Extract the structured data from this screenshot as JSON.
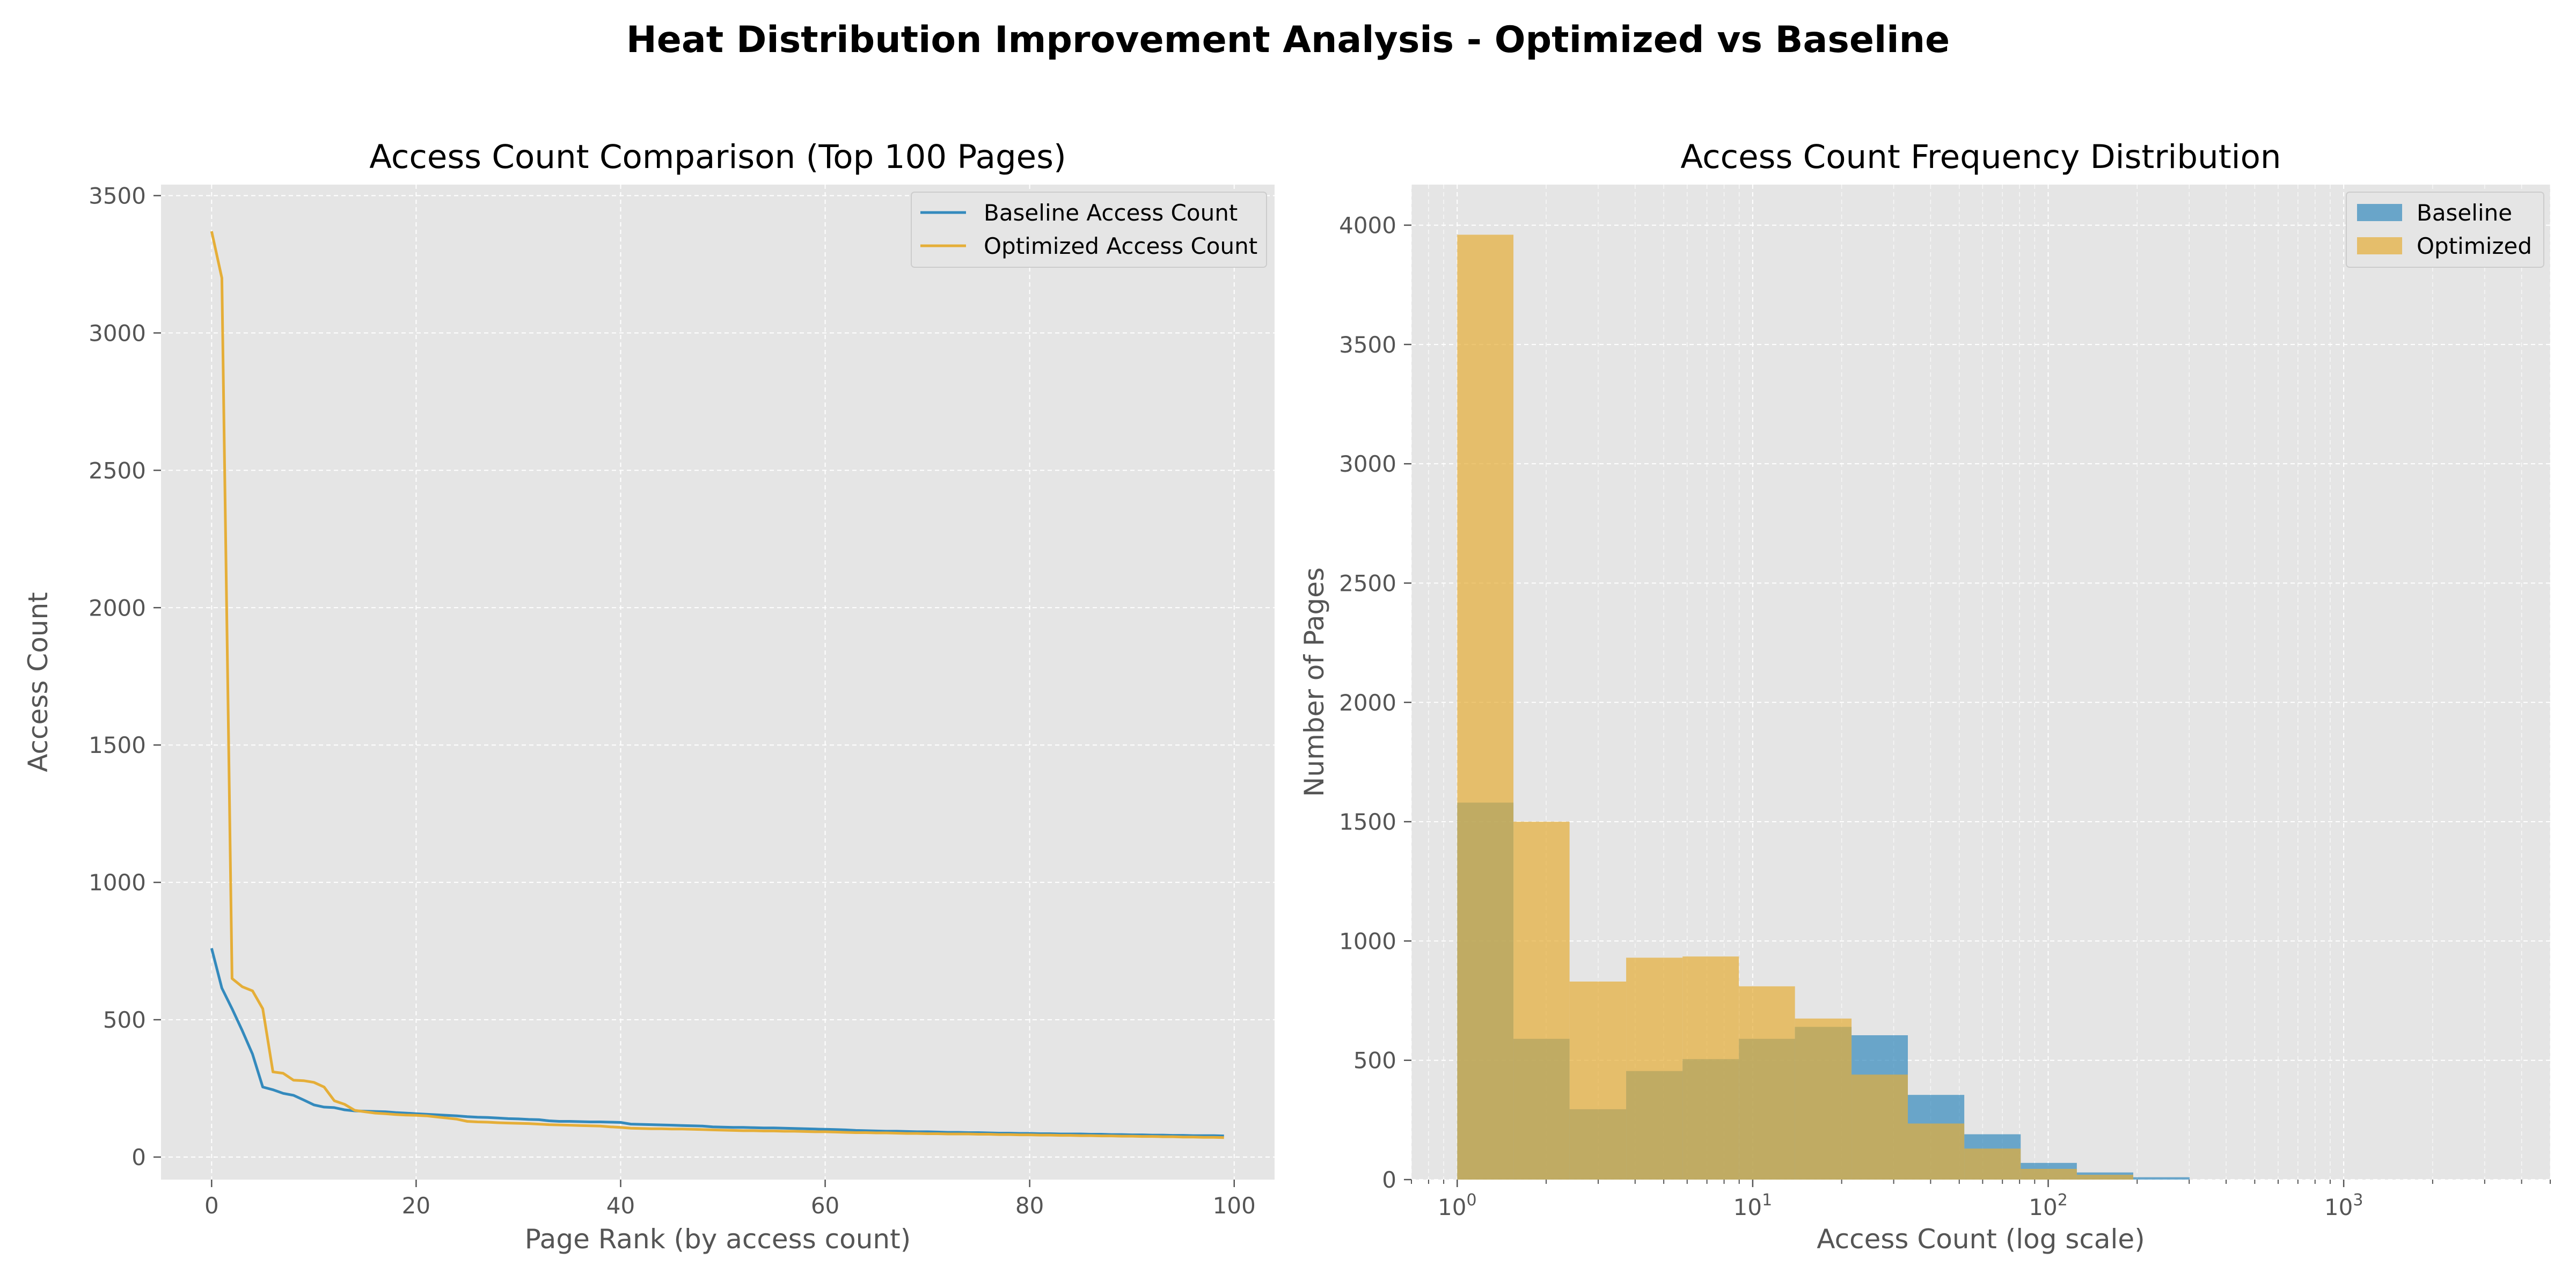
{
  "figure": {
    "title": "Heat Distribution Improvement Analysis - Optimized vs Baseline"
  },
  "colors": {
    "baseline": "#348abd",
    "optimized": "#e5ae38",
    "panel_bg": "#e5e5e5",
    "grid": "#ffffff"
  },
  "chart_data": [
    {
      "type": "line",
      "title": "Access Count Comparison (Top 100 Pages)",
      "xlabel": "Page Rank (by access count)",
      "ylabel": "Access Count",
      "xlim": [
        -4.95,
        103.95
      ],
      "ylim": [
        -82,
        3540
      ],
      "xticks": [
        0,
        20,
        40,
        60,
        80,
        100
      ],
      "yticks": [
        0,
        500,
        1000,
        1500,
        2000,
        2500,
        3000,
        3500
      ],
      "grid": true,
      "legend_position": "upper right",
      "series": [
        {
          "name": "Baseline Access Count",
          "color": "#348abd",
          "x": [
            0,
            1,
            2,
            3,
            4,
            5,
            6,
            7,
            8,
            9,
            10,
            11,
            12,
            13,
            14,
            15,
            16,
            17,
            18,
            19,
            20,
            21,
            22,
            23,
            24,
            25,
            26,
            27,
            28,
            29,
            30,
            31,
            32,
            33,
            34,
            35,
            36,
            37,
            38,
            39,
            40,
            41,
            42,
            43,
            44,
            45,
            46,
            47,
            48,
            49,
            50,
            51,
            52,
            53,
            54,
            55,
            56,
            57,
            58,
            59,
            60,
            61,
            62,
            63,
            64,
            65,
            66,
            67,
            68,
            69,
            70,
            71,
            72,
            73,
            74,
            75,
            76,
            77,
            78,
            79,
            80,
            81,
            82,
            83,
            84,
            85,
            86,
            87,
            88,
            89,
            90,
            91,
            92,
            93,
            94,
            95,
            96,
            97,
            98,
            99
          ],
          "y": [
            760,
            615,
            540,
            460,
            375,
            255,
            245,
            232,
            225,
            208,
            190,
            182,
            180,
            172,
            168,
            167,
            166,
            165,
            162,
            160,
            158,
            156,
            154,
            152,
            150,
            147,
            145,
            144,
            142,
            140,
            139,
            137,
            136,
            132,
            130,
            130,
            129,
            128,
            128,
            127,
            126,
            120,
            119,
            118,
            117,
            116,
            115,
            114,
            113,
            110,
            109,
            108,
            108,
            107,
            106,
            106,
            105,
            104,
            103,
            102,
            101,
            100,
            99,
            97,
            96,
            95,
            94,
            94,
            93,
            92,
            92,
            91,
            90,
            90,
            89,
            89,
            88,
            87,
            87,
            86,
            86,
            85,
            85,
            84,
            84,
            84,
            83,
            83,
            82,
            82,
            81,
            81,
            80,
            80,
            79,
            79,
            78,
            78,
            78,
            77
          ]
        },
        {
          "name": "Optimized Access Count",
          "color": "#e5ae38",
          "x": [
            0,
            1,
            2,
            3,
            4,
            5,
            6,
            7,
            8,
            9,
            10,
            11,
            12,
            13,
            14,
            15,
            16,
            17,
            18,
            19,
            20,
            21,
            22,
            23,
            24,
            25,
            26,
            27,
            28,
            29,
            30,
            31,
            32,
            33,
            34,
            35,
            36,
            37,
            38,
            39,
            40,
            41,
            42,
            43,
            44,
            45,
            46,
            47,
            48,
            49,
            50,
            51,
            52,
            53,
            54,
            55,
            56,
            57,
            58,
            59,
            60,
            61,
            62,
            63,
            64,
            65,
            66,
            67,
            68,
            69,
            70,
            71,
            72,
            73,
            74,
            75,
            76,
            77,
            78,
            79,
            80,
            81,
            82,
            83,
            84,
            85,
            86,
            87,
            88,
            89,
            90,
            91,
            92,
            93,
            94,
            95,
            96,
            97,
            98,
            99
          ],
          "y": [
            3370,
            3200,
            650,
            620,
            605,
            540,
            310,
            305,
            280,
            278,
            272,
            255,
            205,
            192,
            170,
            165,
            160,
            158,
            155,
            153,
            152,
            150,
            146,
            142,
            138,
            130,
            128,
            127,
            125,
            124,
            123,
            122,
            120,
            118,
            117,
            116,
            115,
            114,
            113,
            110,
            108,
            105,
            104,
            103,
            103,
            102,
            102,
            101,
            100,
            99,
            98,
            97,
            96,
            96,
            95,
            95,
            94,
            94,
            93,
            92,
            92,
            91,
            90,
            89,
            89,
            88,
            88,
            87,
            86,
            86,
            85,
            85,
            84,
            84,
            84,
            83,
            83,
            82,
            82,
            81,
            81,
            80,
            80,
            79,
            79,
            78,
            78,
            77,
            77,
            76,
            76,
            75,
            75,
            74,
            74,
            73,
            73,
            72,
            72,
            71
          ]
        }
      ]
    },
    {
      "type": "bar",
      "title": "Access Count Frequency Distribution",
      "xlabel": "Access Count (log scale)",
      "ylabel": "Number of Pages",
      "xscale": "log",
      "xlim": [
        0.7,
        5000
      ],
      "ylim": [
        0,
        4170
      ],
      "xticks": [
        1,
        10,
        100,
        1000
      ],
      "xtick_labels": [
        "10^0",
        "10^1",
        "10^2",
        "10^3"
      ],
      "yticks": [
        0,
        500,
        1000,
        1500,
        2000,
        2500,
        3000,
        3500,
        4000
      ],
      "grid": true,
      "legend_position": "upper right",
      "bin_edges": [
        1,
        1.55,
        2.4,
        3.73,
        5.79,
        8.98,
        13.9,
        21.6,
        33.5,
        52,
        80.7,
        125,
        194,
        301
      ],
      "series": [
        {
          "name": "Baseline",
          "color": "#348abd",
          "values": [
            1580,
            590,
            295,
            455,
            505,
            590,
            640,
            605,
            355,
            190,
            70,
            30,
            10
          ]
        },
        {
          "name": "Optimized",
          "color": "#e5ae38",
          "values": [
            3960,
            1500,
            830,
            930,
            935,
            810,
            675,
            440,
            235,
            130,
            45,
            20,
            0
          ]
        }
      ]
    }
  ]
}
